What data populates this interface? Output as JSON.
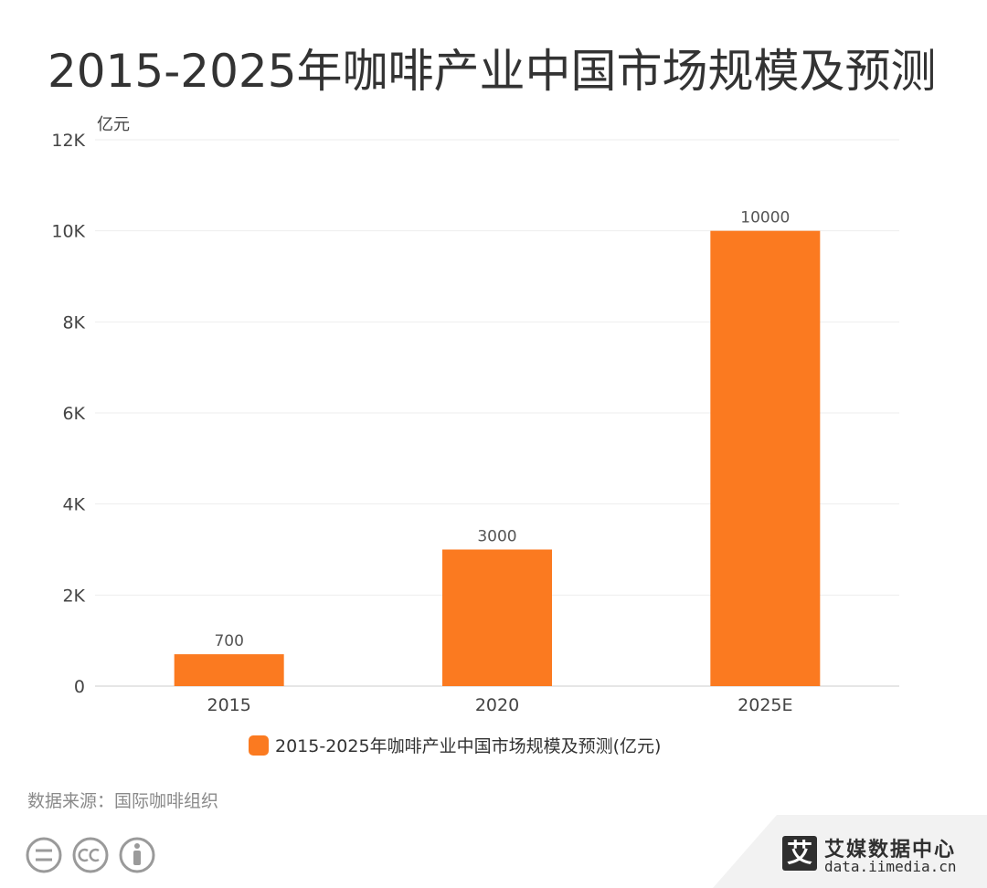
{
  "page_title": "2015-2025年咖啡产业中国市场规模及预测",
  "source_text": "数据来源：国际咖啡组织",
  "brand": {
    "logo_char": "艾",
    "name": "艾媒数据中心",
    "url": "data.iimedia.cn"
  },
  "colors": {
    "bar": "#fb7a20",
    "axis_text": "#444444",
    "grid": "#eeeeee"
  },
  "chart_data": {
    "type": "bar",
    "title": "2015-2025年咖啡产业中国市场规模及预测",
    "unit_label": "亿元",
    "categories": [
      "2015",
      "2020",
      "2025E"
    ],
    "series": [
      {
        "name": "2015-2025年咖啡产业中国市场规模及预测(亿元)",
        "values": [
          700,
          3000,
          10000
        ]
      }
    ],
    "data_labels": [
      "700",
      "3000",
      "10000"
    ],
    "y_ticks": [
      0,
      2000,
      4000,
      6000,
      8000,
      10000,
      12000
    ],
    "y_tick_labels": [
      "0",
      "2K",
      "4K",
      "6K",
      "8K",
      "10K",
      "12K"
    ],
    "ylim": [
      0,
      12000
    ],
    "grid": true,
    "legend_position": "bottom-center"
  }
}
